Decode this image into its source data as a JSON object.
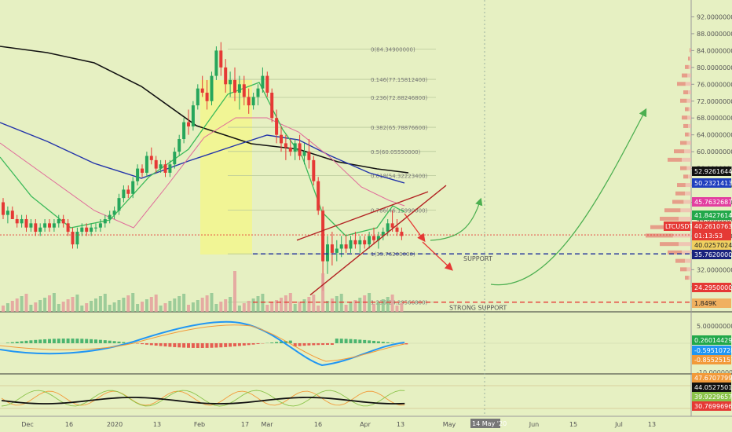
{
  "chart_data": {
    "type": "candlestick",
    "symbol_tag": "LTCUSDT",
    "price_axis": {
      "ticks": [
        "92.00000000",
        "88.00000000",
        "84.00000000",
        "80.00000000",
        "76.00000000",
        "72.00000000",
        "68.00000000",
        "64.00000000",
        "60.00000000",
        "56.00000000",
        "52.00000000",
        "48.00000000",
        "44.00000000",
        "40.00000000",
        "36.00000000",
        "32.00000000",
        "28.00000000"
      ],
      "ylim": [
        22,
        96
      ]
    },
    "x_axis_labels": [
      "Dec",
      "16",
      "2020",
      "13",
      "Feb",
      "17",
      "Mar",
      "16",
      "Apr",
      "13",
      "May",
      "14 May '20",
      "Jun",
      "15",
      "Jul",
      "13"
    ],
    "price_tags": [
      {
        "label": "52.92616448",
        "color": "#111111"
      },
      {
        "label": "50.23214131",
        "color": "#1f3fbf"
      },
      {
        "label": "45.76326877",
        "color": "#e23fa0"
      },
      {
        "label": "41.84276142",
        "color": "#22a84a"
      },
      {
        "label": "LTCUSDT",
        "color": "#e53935"
      },
      {
        "label": "40.26107639",
        "color": "#e53935"
      },
      {
        "label": "01:13:53",
        "color": "#e53935"
      },
      {
        "label": "40.02570244",
        "color": "#f0d060"
      },
      {
        "label": "35.76200000",
        "color": "#1a237e"
      },
      {
        "label": "24.29500000",
        "color": "#e53935"
      },
      {
        "label": "1.849K",
        "color": "#f0b060"
      }
    ],
    "fib_levels": [
      {
        "label": "0(84.34900000)",
        "price": 84.349
      },
      {
        "label": "0.146(77.15812400)",
        "price": 77.158
      },
      {
        "label": "0.236(72.88246800)",
        "price": 72.882
      },
      {
        "label": "0.382(65.78876600)",
        "price": 65.789
      },
      {
        "label": "0.5(60.05550000)",
        "price": 60.056
      },
      {
        "label": "0.618(54.32223400)",
        "price": 54.322
      },
      {
        "label": "0.786(46.15990000)",
        "price": 46.16
      },
      {
        "label": "1(35.76200000)",
        "price": 35.762
      },
      {
        "label": "1.236(24.29566800)",
        "price": 24.296
      }
    ],
    "annotations": {
      "support": "SUPPORT",
      "strong_support": "STRONG SUPPORT",
      "support_price": 35.762,
      "strong_support_price": 24.295
    },
    "macd_axis": [
      "5.00000000",
      "-10.00000000"
    ],
    "macd_tags": [
      {
        "label": "0.26014429",
        "color": "#22a84a"
      },
      {
        "label": "-0.59510728",
        "color": "#2196f3"
      },
      {
        "label": "-0.85525157",
        "color": "#f29a3a"
      }
    ],
    "rsi_tags": [
      {
        "label": "47.67077990",
        "color": "#f29a3a"
      },
      {
        "label": "44.05275017",
        "color": "#111111"
      },
      {
        "label": "39.92296573",
        "color": "#8bc34a"
      },
      {
        "label": "30.76996969",
        "color": "#e53935"
      }
    ],
    "candles": [
      [
        48,
        49,
        44,
        45
      ],
      [
        45,
        47,
        43,
        46
      ],
      [
        46,
        47,
        44,
        44
      ],
      [
        44,
        45,
        42,
        43
      ],
      [
        43,
        45,
        42,
        44
      ],
      [
        44,
        45,
        41,
        42
      ],
      [
        42,
        44,
        41,
        43
      ],
      [
        43,
        44,
        40,
        41
      ],
      [
        41,
        43,
        40,
        42
      ],
      [
        42,
        44,
        41,
        43
      ],
      [
        43,
        44,
        41,
        42
      ],
      [
        42,
        44,
        41,
        43
      ],
      [
        43,
        45,
        42,
        44
      ],
      [
        44,
        45,
        42,
        43
      ],
      [
        43,
        44,
        40,
        41
      ],
      [
        41,
        42,
        37,
        38
      ],
      [
        38,
        42,
        37,
        41
      ],
      [
        41,
        43,
        40,
        42
      ],
      [
        42,
        43,
        40,
        41
      ],
      [
        41,
        43,
        40,
        42
      ],
      [
        42,
        43,
        41,
        42
      ],
      [
        42,
        44,
        41,
        43
      ],
      [
        43,
        45,
        42,
        44
      ],
      [
        44,
        46,
        43,
        45
      ],
      [
        45,
        47,
        44,
        46
      ],
      [
        46,
        50,
        45,
        49
      ],
      [
        49,
        52,
        48,
        51
      ],
      [
        51,
        52,
        49,
        50
      ],
      [
        50,
        54,
        49,
        53
      ],
      [
        53,
        57,
        52,
        56
      ],
      [
        56,
        57,
        54,
        55
      ],
      [
        55,
        60,
        54,
        59
      ],
      [
        59,
        61,
        57,
        58
      ],
      [
        58,
        59,
        55,
        56
      ],
      [
        56,
        58,
        55,
        57
      ],
      [
        57,
        58,
        54,
        55
      ],
      [
        55,
        58,
        54,
        57
      ],
      [
        57,
        61,
        56,
        60
      ],
      [
        60,
        64,
        59,
        63
      ],
      [
        63,
        68,
        62,
        67
      ],
      [
        67,
        70,
        64,
        66
      ],
      [
        66,
        72,
        65,
        71
      ],
      [
        71,
        76,
        70,
        75
      ],
      [
        75,
        78,
        73,
        74
      ],
      [
        74,
        77,
        70,
        72
      ],
      [
        72,
        79,
        71,
        78
      ],
      [
        78,
        85,
        77,
        84
      ],
      [
        84,
        86,
        78,
        80
      ],
      [
        80,
        82,
        74,
        76
      ],
      [
        76,
        79,
        73,
        77
      ],
      [
        77,
        80,
        72,
        74
      ],
      [
        74,
        78,
        70,
        76
      ],
      [
        76,
        78,
        71,
        73
      ],
      [
        73,
        75,
        69,
        71
      ],
      [
        71,
        74,
        70,
        73
      ],
      [
        73,
        76,
        71,
        75
      ],
      [
        75,
        80,
        74,
        78
      ],
      [
        78,
        79,
        73,
        74
      ],
      [
        74,
        75,
        67,
        68
      ],
      [
        68,
        70,
        62,
        64
      ],
      [
        64,
        66,
        60,
        62
      ],
      [
        62,
        64,
        58,
        61
      ],
      [
        61,
        63,
        59,
        60
      ],
      [
        60,
        63,
        58,
        62
      ],
      [
        62,
        64,
        58,
        59
      ],
      [
        59,
        62,
        57,
        60
      ],
      [
        60,
        63,
        56,
        58
      ],
      [
        58,
        59,
        52,
        53
      ],
      [
        53,
        54,
        45,
        46
      ],
      [
        46,
        47,
        27,
        34
      ],
      [
        34,
        40,
        31,
        38
      ],
      [
        38,
        41,
        33,
        36
      ],
      [
        36,
        39,
        34,
        37
      ],
      [
        37,
        40,
        35,
        38
      ],
      [
        38,
        40,
        36,
        37
      ],
      [
        37,
        40,
        36,
        39
      ],
      [
        39,
        41,
        37,
        38
      ],
      [
        38,
        40,
        36,
        39
      ],
      [
        39,
        40,
        37,
        38
      ],
      [
        38,
        41,
        37,
        40
      ],
      [
        40,
        42,
        38,
        39
      ],
      [
        39,
        41,
        37,
        40
      ],
      [
        40,
        42,
        39,
        41
      ],
      [
        41,
        44,
        40,
        43
      ],
      [
        43,
        46,
        41,
        42
      ],
      [
        42,
        44,
        40,
        41
      ],
      [
        41,
        42,
        39,
        40
      ]
    ]
  }
}
